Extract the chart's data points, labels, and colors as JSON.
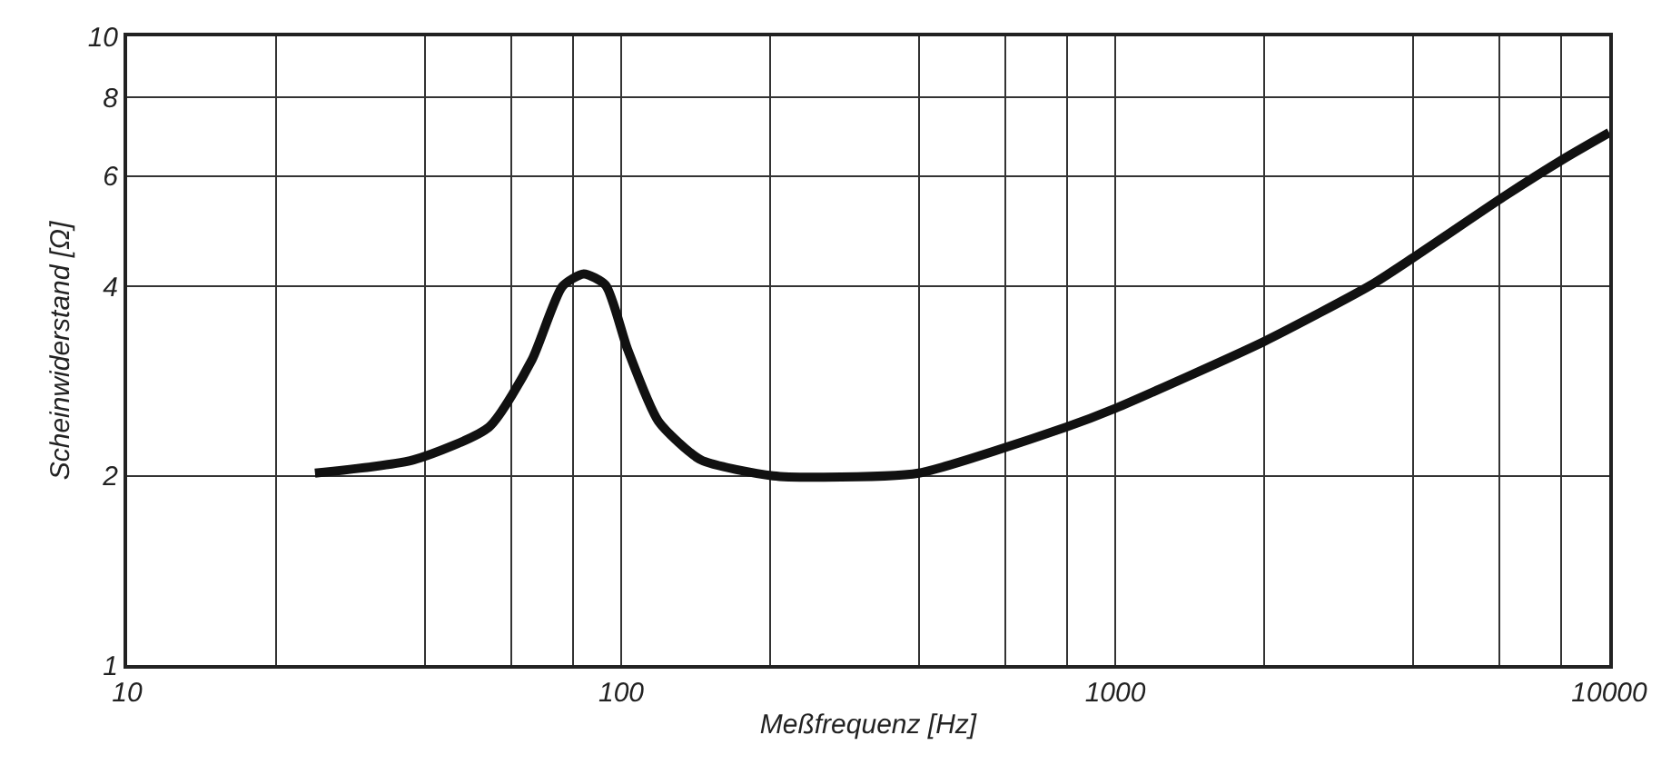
{
  "chart_data": {
    "type": "line",
    "xlabel": "Meßfrequenz [Hz]",
    "ylabel": "Scheinwiderstand [Ω]",
    "log": "xy",
    "grid": true,
    "marker": "none",
    "line_style": "solid",
    "xlim": [
      10,
      10000
    ],
    "ylim": [
      1,
      10
    ],
    "xticks": [
      10,
      {
        "value": 20,
        "label": null
      },
      {
        "value": 40,
        "label": null
      },
      {
        "value": 60,
        "label": null
      },
      {
        "value": 80,
        "label": null
      },
      100,
      {
        "value": 200,
        "label": null
      },
      {
        "value": 400,
        "label": null
      },
      {
        "value": 600,
        "label": null
      },
      {
        "value": 800,
        "label": null
      },
      1000,
      {
        "value": 2000,
        "label": null
      },
      {
        "value": 4000,
        "label": null
      },
      {
        "value": 6000,
        "label": null
      },
      {
        "value": 8000,
        "label": null
      },
      10000
    ],
    "yticks": [
      1,
      2,
      4,
      6,
      8,
      10
    ],
    "series": [
      {
        "color": "#111111",
        "x": [
          24,
          38,
          54,
          66,
          76,
          84,
          93,
          103,
          119,
          145,
          203,
          255,
          400,
          795,
          1000,
          2000,
          3290,
          4000,
          6120,
          8130,
          10000
        ],
        "values": [
          2.02,
          2.12,
          2.39,
          3.06,
          4.0,
          4.19,
          4.02,
          3.18,
          2.44,
          2.12,
          2.0,
          1.99,
          2.02,
          2.39,
          2.56,
          3.27,
          4.02,
          4.44,
          5.56,
          6.4,
          7.03
        ]
      }
    ]
  }
}
